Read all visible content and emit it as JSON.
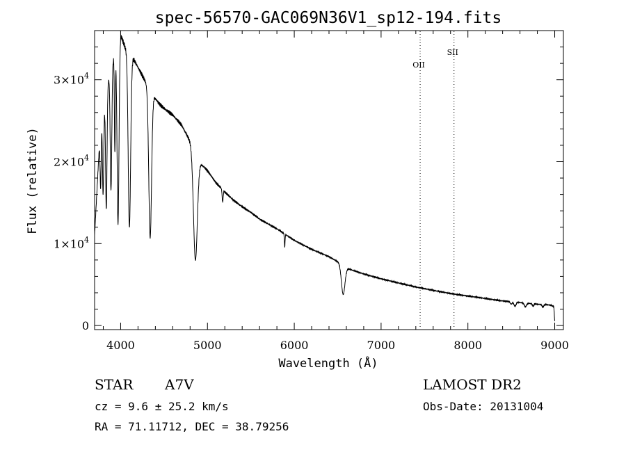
{
  "chart_data": {
    "type": "line",
    "title": "spec-56570-GAC069N36V1_sp12-194.fits",
    "xlabel": "Wavelength (Å)",
    "ylabel": "Flux (relative)",
    "xlim": [
      3700,
      9100
    ],
    "ylim": [
      -500,
      36000
    ],
    "x_ticks": [
      4000,
      5000,
      6000,
      7000,
      8000,
      9000
    ],
    "x_tick_labels": [
      "4000",
      "5000",
      "6000",
      "7000",
      "8000",
      "9000"
    ],
    "y_ticks": [
      0,
      10000,
      20000,
      30000
    ],
    "y_tick_labels": [
      {
        "mantissa": "0",
        "exp": ""
      },
      {
        "mantissa": "1×10",
        "exp": "4"
      },
      {
        "mantissa": "2×10",
        "exp": "4"
      },
      {
        "mantissa": "3×10",
        "exp": "4"
      }
    ],
    "grid": false,
    "series": [
      {
        "color": "#000000",
        "continuum": [
          [
            3700,
            11000
          ],
          [
            3720,
            15000
          ],
          [
            3750,
            21000
          ],
          [
            3780,
            25000
          ],
          [
            3820,
            27000
          ],
          [
            3860,
            30000
          ],
          [
            3900,
            32000
          ],
          [
            3950,
            33500
          ],
          [
            4000,
            35500
          ],
          [
            4050,
            34000
          ],
          [
            4100,
            33000
          ],
          [
            4150,
            32500
          ],
          [
            4200,
            31500
          ],
          [
            4250,
            30500
          ],
          [
            4300,
            29500
          ],
          [
            4350,
            28500
          ],
          [
            4400,
            27700
          ],
          [
            4450,
            27000
          ],
          [
            4500,
            26500
          ],
          [
            4600,
            25700
          ],
          [
            4700,
            24500
          ],
          [
            4800,
            22500
          ],
          [
            4900,
            20000
          ],
          [
            5000,
            18900
          ],
          [
            5100,
            17400
          ],
          [
            5200,
            16300
          ],
          [
            5300,
            15300
          ],
          [
            5400,
            14500
          ],
          [
            5500,
            13800
          ],
          [
            5600,
            13000
          ],
          [
            5700,
            12400
          ],
          [
            5800,
            11800
          ],
          [
            5900,
            11100
          ],
          [
            6000,
            10400
          ],
          [
            6200,
            9300
          ],
          [
            6400,
            8400
          ],
          [
            6500,
            7800
          ],
          [
            6600,
            7000
          ],
          [
            6800,
            6300
          ],
          [
            7000,
            5700
          ],
          [
            7200,
            5200
          ],
          [
            7400,
            4700
          ],
          [
            7600,
            4300
          ],
          [
            7800,
            3900
          ],
          [
            8000,
            3600
          ],
          [
            8200,
            3300
          ],
          [
            8400,
            3000
          ],
          [
            8600,
            2800
          ],
          [
            8800,
            2600
          ],
          [
            8950,
            2500
          ],
          [
            8990,
            2300
          ],
          [
            9000,
            500
          ]
        ],
        "absorption_lines": [
          {
            "x": 3770,
            "depth": 7000,
            "width": 6
          },
          {
            "x": 3798,
            "depth": 10000,
            "width": 7
          },
          {
            "x": 3835,
            "depth": 14000,
            "width": 8
          },
          {
            "x": 3889,
            "depth": 15000,
            "width": 9
          },
          {
            "x": 3933,
            "depth": 12000,
            "width": 5
          },
          {
            "x": 3970,
            "depth": 22000,
            "width": 11
          },
          {
            "x": 4101,
            "depth": 21000,
            "width": 14
          },
          {
            "x": 4340,
            "depth": 18000,
            "width": 16
          },
          {
            "x": 4861,
            "depth": 13000,
            "width": 22
          },
          {
            "x": 5175,
            "depth": 1500,
            "width": 6
          },
          {
            "x": 5890,
            "depth": 1600,
            "width": 4
          },
          {
            "x": 6563,
            "depth": 3500,
            "width": 20
          },
          {
            "x": 8498,
            "depth": 300,
            "width": 10
          },
          {
            "x": 8542,
            "depth": 500,
            "width": 12
          },
          {
            "x": 8662,
            "depth": 450,
            "width": 12
          },
          {
            "x": 8750,
            "depth": 300,
            "width": 8
          },
          {
            "x": 8863,
            "depth": 300,
            "width": 10
          }
        ]
      }
    ],
    "line_markers": [
      {
        "label": "OII",
        "x": 7450
      },
      {
        "label": "SII",
        "x": 7840
      }
    ]
  },
  "info": {
    "object_class": "STAR",
    "subclass": "A7V",
    "survey": "LAMOST DR2",
    "cz": "cz = 9.6 ± 25.2 km/s",
    "obs_date": "Obs-Date: 20131004",
    "radec": "RA =  71.11712, DEC =  38.79256"
  }
}
